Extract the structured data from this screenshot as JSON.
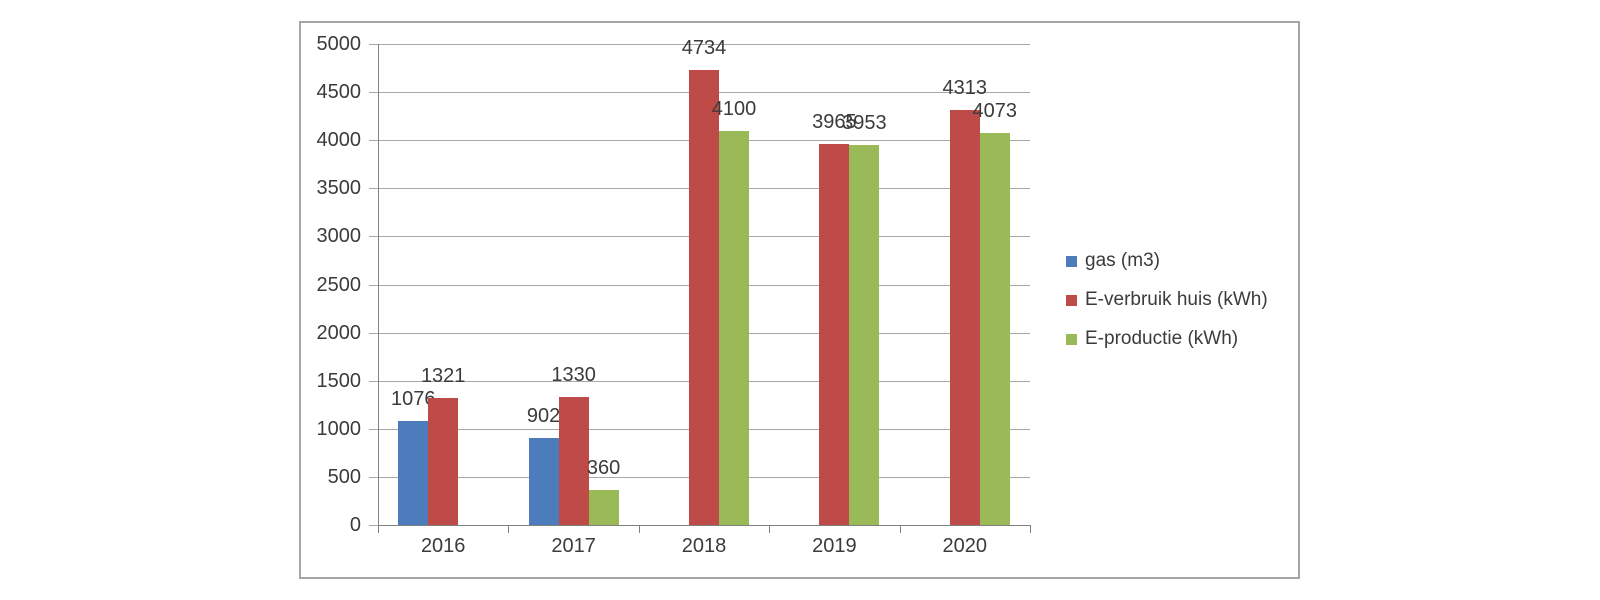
{
  "chart_data": {
    "type": "bar",
    "title": "",
    "xlabel": "",
    "ylabel": "",
    "categories": [
      "2016",
      "2017",
      "2018",
      "2019",
      "2020"
    ],
    "series": [
      {
        "name": "gas (m3)",
        "color": "#4D7CBD",
        "values": [
          1076,
          902,
          null,
          null,
          null
        ]
      },
      {
        "name": "E-verbruik huis (kWh)",
        "color": "#BE4B48",
        "values": [
          1321,
          1330,
          4734,
          3965,
          4313
        ]
      },
      {
        "name": "E-productie (kWh)",
        "color": "#9ABA58",
        "values": [
          null,
          360,
          4100,
          3953,
          4073
        ]
      }
    ],
    "ylim": [
      0,
      5000
    ],
    "yticks": [
      0,
      500,
      1000,
      1500,
      2000,
      2500,
      3000,
      3500,
      4000,
      4500,
      5000
    ],
    "ytick_labels": [
      "0",
      "500",
      "1000",
      "1500",
      "2000",
      "2500",
      "3000",
      "3500",
      "4000",
      "4500",
      "5000"
    ],
    "grid": true,
    "data_labels": true,
    "legend_position": "right"
  },
  "frame": {
    "border_color": "#a6a6a6",
    "background": "#ffffff"
  }
}
